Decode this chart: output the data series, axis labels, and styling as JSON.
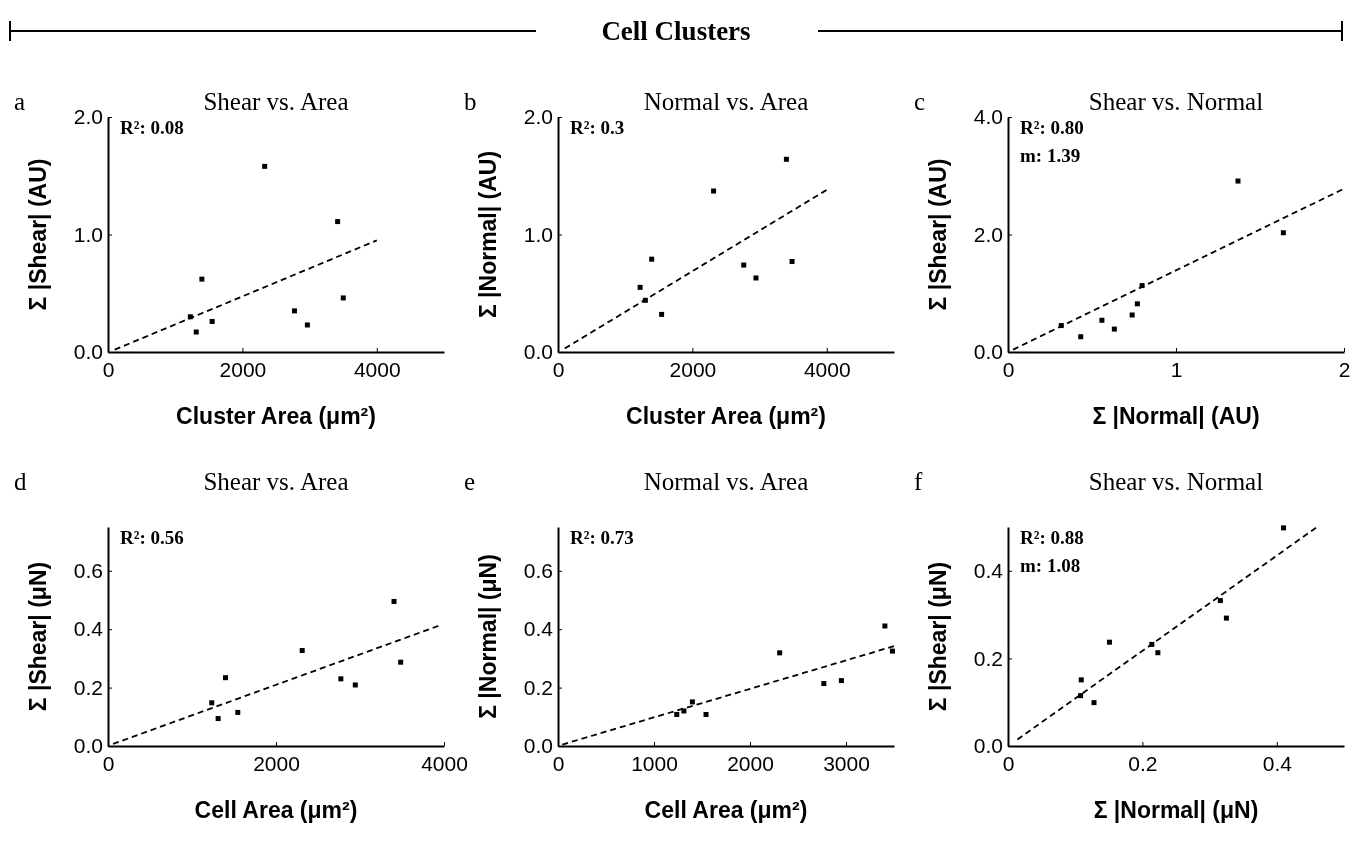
{
  "chart_data": [
    {
      "type": "scatter",
      "title": "Shear vs. Area",
      "xlabel": "Cluster Area (μm²)",
      "ylabel": "Σ |Shear| (AU)",
      "annotations": [
        "Cell Clusters",
        "a",
        "R²: 0.08"
      ],
      "xlim": [
        0,
        5000
      ],
      "ylim": [
        0,
        2
      ],
      "xticks": [
        0,
        2000,
        4000
      ],
      "yticks": [
        {
          "value": 0,
          "label": "0.0"
        },
        {
          "value": 1,
          "label": "1.0"
        },
        {
          "value": 2,
          "label": "2.0"
        }
      ],
      "series": [
        {
          "type": "scatter",
          "marker": "square",
          "color": "#000000",
          "x": [
            2331,
            3417,
            1397,
            1225,
            1313,
            1550,
            2775,
            2967,
            3501
          ],
          "values": [
            1.58,
            1.11,
            0.62,
            0.3,
            0.17,
            0.26,
            0.35,
            0.23,
            0.46
          ]
        },
        {
          "type": "line",
          "line_style": "dashed",
          "color": "#000000",
          "x": [
            100,
            4000
          ],
          "values": [
            0.02,
            0.95
          ]
        }
      ]
    },
    {
      "type": "scatter",
      "title": "Normal vs. Area",
      "xlabel": "Cluster Area (μm²)",
      "ylabel": "Σ |Normal| (AU)",
      "annotations": [
        "b",
        "R²: 0.3"
      ],
      "xlim": [
        0,
        5000
      ],
      "ylim": [
        0,
        2
      ],
      "xticks": [
        0,
        2000,
        4000
      ],
      "yticks": [
        {
          "value": 0,
          "label": "0.0"
        },
        {
          "value": 1,
          "label": "1.0"
        },
        {
          "value": 2,
          "label": "2.0"
        }
      ],
      "series": [
        {
          "type": "scatter",
          "marker": "square",
          "color": "#000000",
          "x": [
            3399,
            2315,
            1394,
            1222,
            1300,
            1542,
            2764,
            2946,
            3483
          ],
          "values": [
            1.64,
            1.37,
            0.79,
            0.55,
            0.44,
            0.32,
            0.74,
            0.63,
            0.77
          ]
        },
        {
          "type": "line",
          "line_style": "dashed",
          "color": "#000000",
          "x": [
            100,
            4000
          ],
          "values": [
            0.03,
            1.38
          ]
        }
      ]
    },
    {
      "type": "scatter",
      "title": "Shear vs. Normal",
      "xlabel": "Σ |Normal| (AU)",
      "ylabel": "Σ |Shear| (AU)",
      "annotations": [
        "c",
        "R²: 0.80",
        "m: 1.39"
      ],
      "xlim": [
        0,
        2
      ],
      "ylim": [
        0,
        4
      ],
      "xticks": [
        0,
        1,
        2
      ],
      "yticks": [
        {
          "value": 0,
          "label": "0.0"
        },
        {
          "value": 2,
          "label": "2.0"
        },
        {
          "value": 4,
          "label": "4.0"
        }
      ],
      "series": [
        {
          "type": "scatter",
          "marker": "square",
          "color": "#000000",
          "x": [
            1.369,
            1.639,
            0.798,
            0.77,
            0.739,
            0.559,
            0.633,
            0.433,
            0.317
          ],
          "values": [
            2.91,
            2.03,
            1.13,
            0.82,
            0.63,
            0.54,
            0.39,
            0.26,
            0.45
          ]
        },
        {
          "type": "line",
          "line_style": "dashed",
          "color": "#000000",
          "x": [
            0.03,
            2
          ],
          "values": [
            0.04,
            2.78
          ]
        }
      ]
    },
    {
      "type": "scatter",
      "title": "Shear vs. Area",
      "xlabel": "Cell Area (μm²)",
      "ylabel": "Σ |Shear| (μN)",
      "annotations": [
        "d",
        "R²: 0.56"
      ],
      "xlim": [
        0,
        4000
      ],
      "ylim": [
        0,
        0.75
      ],
      "xticks": [
        0,
        2000,
        4000
      ],
      "yticks": [
        {
          "value": 0,
          "label": "0.0"
        },
        0.2,
        0.4,
        0.6
      ],
      "series": [
        {
          "type": "scatter",
          "marker": "square",
          "color": "#000000",
          "x": [
            3405,
            2312,
            1399,
            1235,
            1311,
            1545,
            2772,
            2944,
            3484
          ],
          "values": [
            0.495,
            0.327,
            0.234,
            0.148,
            0.094,
            0.115,
            0.23,
            0.209,
            0.287
          ]
        },
        {
          "type": "line",
          "line_style": "dashed",
          "color": "#000000",
          "x": [
            60,
            3950
          ],
          "values": [
            0.007,
            0.413
          ]
        }
      ]
    },
    {
      "type": "scatter",
      "title": "Normal vs. Area",
      "xlabel": "Cell Area (μm²)",
      "ylabel": "Σ |Normal| (μN)",
      "annotations": [
        "e",
        "R²: 0.73"
      ],
      "xlim": [
        0,
        3500
      ],
      "ylim": [
        0,
        0.75
      ],
      "xticks": [
        0,
        1000,
        2000,
        3000
      ],
      "yticks": [
        {
          "value": 0,
          "label": "0.0"
        },
        0.2,
        0.4,
        0.6
      ],
      "series": [
        {
          "type": "scatter",
          "marker": "square",
          "color": "#000000",
          "x": [
            3405,
            3484,
            2309,
            2769,
            2952,
            1400,
            1237,
            1311,
            1542
          ],
          "values": [
            0.411,
            0.325,
            0.319,
            0.214,
            0.224,
            0.151,
            0.108,
            0.12,
            0.108
          ]
        },
        {
          "type": "line",
          "line_style": "dashed",
          "color": "#000000",
          "x": [
            45,
            3500
          ],
          "values": [
            0.005,
            0.342
          ]
        }
      ]
    },
    {
      "type": "scatter",
      "title": "Shear vs. Normal",
      "xlabel": "Σ |Normal| (μN)",
      "ylabel": "Σ |Shear| (μN)",
      "annotations": [
        "f",
        "R²: 0.88",
        "m: 1.08"
      ],
      "xlim": [
        0,
        0.5
      ],
      "ylim": [
        0,
        0.5
      ],
      "xticks": [
        {
          "value": 0,
          "label": "0"
        },
        0.2,
        0.4
      ],
      "yticks": [
        {
          "value": 0,
          "label": "0.0"
        },
        0.2,
        0.4
      ],
      "series": [
        {
          "type": "scatter",
          "marker": "square",
          "color": "#000000",
          "x": [
            0.41,
            0.316,
            0.325,
            0.151,
            0.223,
            0.109,
            0.128,
            0.108,
            0.214
          ],
          "values": [
            0.498,
            0.332,
            0.292,
            0.237,
            0.213,
            0.151,
            0.099,
            0.115,
            0.232
          ]
        },
        {
          "type": "line",
          "line_style": "dashed",
          "color": "#000000",
          "x": [
            0.014,
            0.46
          ],
          "values": [
            0.015,
            0.5
          ]
        }
      ]
    }
  ]
}
